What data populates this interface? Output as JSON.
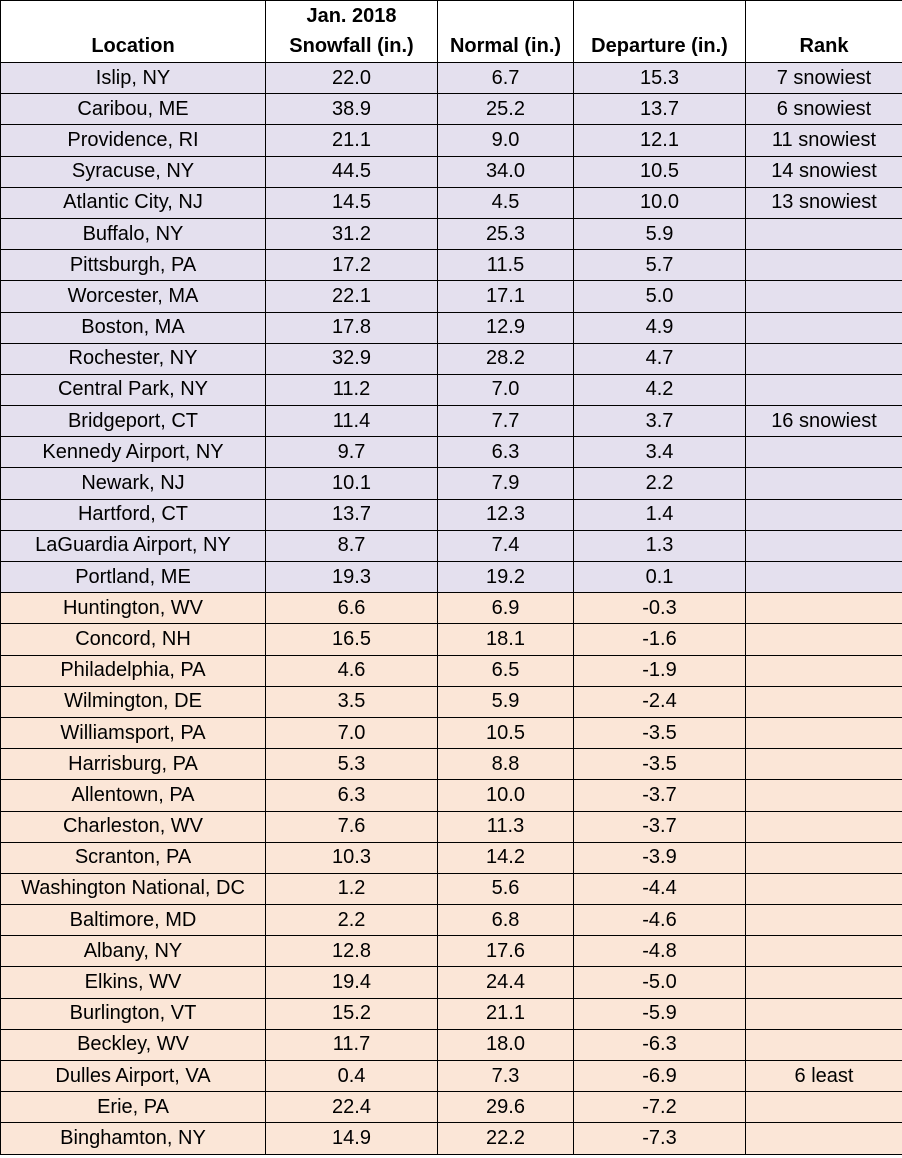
{
  "chart_data": {
    "type": "table",
    "columns": [
      "Location",
      "Jan. 2018 Snowfall (in.)",
      "Normal (in.)",
      "Departure (in.)",
      "Rank"
    ],
    "header": {
      "location": "Location",
      "snowfall_line1": "Jan. 2018",
      "snowfall_line2": "Snowfall (in.)",
      "normal": "Normal (in.)",
      "departure": "Departure (in.)",
      "rank": "Rank"
    },
    "colors": {
      "above_normal_row": "#e4e0ee",
      "below_normal_row": "#fbe6d7"
    },
    "rows": [
      {
        "location": "Islip, NY",
        "snowfall": "22.0",
        "normal": "6.7",
        "departure": "15.3",
        "rank": "7 snowiest"
      },
      {
        "location": "Caribou, ME",
        "snowfall": "38.9",
        "normal": "25.2",
        "departure": "13.7",
        "rank": "6 snowiest"
      },
      {
        "location": "Providence, RI",
        "snowfall": "21.1",
        "normal": "9.0",
        "departure": "12.1",
        "rank": "11 snowiest"
      },
      {
        "location": "Syracuse, NY",
        "snowfall": "44.5",
        "normal": "34.0",
        "departure": "10.5",
        "rank": "14 snowiest"
      },
      {
        "location": "Atlantic City, NJ",
        "snowfall": "14.5",
        "normal": "4.5",
        "departure": "10.0",
        "rank": "13 snowiest"
      },
      {
        "location": "Buffalo, NY",
        "snowfall": "31.2",
        "normal": "25.3",
        "departure": "5.9",
        "rank": ""
      },
      {
        "location": "Pittsburgh, PA",
        "snowfall": "17.2",
        "normal": "11.5",
        "departure": "5.7",
        "rank": ""
      },
      {
        "location": "Worcester, MA",
        "snowfall": "22.1",
        "normal": "17.1",
        "departure": "5.0",
        "rank": ""
      },
      {
        "location": "Boston, MA",
        "snowfall": "17.8",
        "normal": "12.9",
        "departure": "4.9",
        "rank": ""
      },
      {
        "location": "Rochester, NY",
        "snowfall": "32.9",
        "normal": "28.2",
        "departure": "4.7",
        "rank": ""
      },
      {
        "location": "Central Park, NY",
        "snowfall": "11.2",
        "normal": "7.0",
        "departure": "4.2",
        "rank": ""
      },
      {
        "location": "Bridgeport, CT",
        "snowfall": "11.4",
        "normal": "7.7",
        "departure": "3.7",
        "rank": "16 snowiest"
      },
      {
        "location": "Kennedy Airport, NY",
        "snowfall": "9.7",
        "normal": "6.3",
        "departure": "3.4",
        "rank": ""
      },
      {
        "location": "Newark, NJ",
        "snowfall": "10.1",
        "normal": "7.9",
        "departure": "2.2",
        "rank": ""
      },
      {
        "location": "Hartford, CT",
        "snowfall": "13.7",
        "normal": "12.3",
        "departure": "1.4",
        "rank": ""
      },
      {
        "location": "LaGuardia Airport, NY",
        "snowfall": "8.7",
        "normal": "7.4",
        "departure": "1.3",
        "rank": ""
      },
      {
        "location": "Portland, ME",
        "snowfall": "19.3",
        "normal": "19.2",
        "departure": "0.1",
        "rank": ""
      },
      {
        "location": "Huntington, WV",
        "snowfall": "6.6",
        "normal": "6.9",
        "departure": "-0.3",
        "rank": ""
      },
      {
        "location": "Concord, NH",
        "snowfall": "16.5",
        "normal": "18.1",
        "departure": "-1.6",
        "rank": ""
      },
      {
        "location": "Philadelphia, PA",
        "snowfall": "4.6",
        "normal": "6.5",
        "departure": "-1.9",
        "rank": ""
      },
      {
        "location": "Wilmington, DE",
        "snowfall": "3.5",
        "normal": "5.9",
        "departure": "-2.4",
        "rank": ""
      },
      {
        "location": "Williamsport, PA",
        "snowfall": "7.0",
        "normal": "10.5",
        "departure": "-3.5",
        "rank": ""
      },
      {
        "location": "Harrisburg, PA",
        "snowfall": "5.3",
        "normal": "8.8",
        "departure": "-3.5",
        "rank": ""
      },
      {
        "location": "Allentown, PA",
        "snowfall": "6.3",
        "normal": "10.0",
        "departure": "-3.7",
        "rank": ""
      },
      {
        "location": "Charleston, WV",
        "snowfall": "7.6",
        "normal": "11.3",
        "departure": "-3.7",
        "rank": ""
      },
      {
        "location": "Scranton, PA",
        "snowfall": "10.3",
        "normal": "14.2",
        "departure": "-3.9",
        "rank": ""
      },
      {
        "location": "Washington National, DC",
        "snowfall": "1.2",
        "normal": "5.6",
        "departure": "-4.4",
        "rank": ""
      },
      {
        "location": "Baltimore, MD",
        "snowfall": "2.2",
        "normal": "6.8",
        "departure": "-4.6",
        "rank": ""
      },
      {
        "location": "Albany, NY",
        "snowfall": "12.8",
        "normal": "17.6",
        "departure": "-4.8",
        "rank": ""
      },
      {
        "location": "Elkins, WV",
        "snowfall": "19.4",
        "normal": "24.4",
        "departure": "-5.0",
        "rank": ""
      },
      {
        "location": "Burlington, VT",
        "snowfall": "15.2",
        "normal": "21.1",
        "departure": "-5.9",
        "rank": ""
      },
      {
        "location": "Beckley, WV",
        "snowfall": "11.7",
        "normal": "18.0",
        "departure": "-6.3",
        "rank": ""
      },
      {
        "location": "Dulles Airport, VA",
        "snowfall": "0.4",
        "normal": "7.3",
        "departure": "-6.9",
        "rank": "6 least"
      },
      {
        "location": "Erie, PA",
        "snowfall": "22.4",
        "normal": "29.6",
        "departure": "-7.2",
        "rank": ""
      },
      {
        "location": "Binghamton, NY",
        "snowfall": "14.9",
        "normal": "22.2",
        "departure": "-7.3",
        "rank": ""
      }
    ]
  }
}
